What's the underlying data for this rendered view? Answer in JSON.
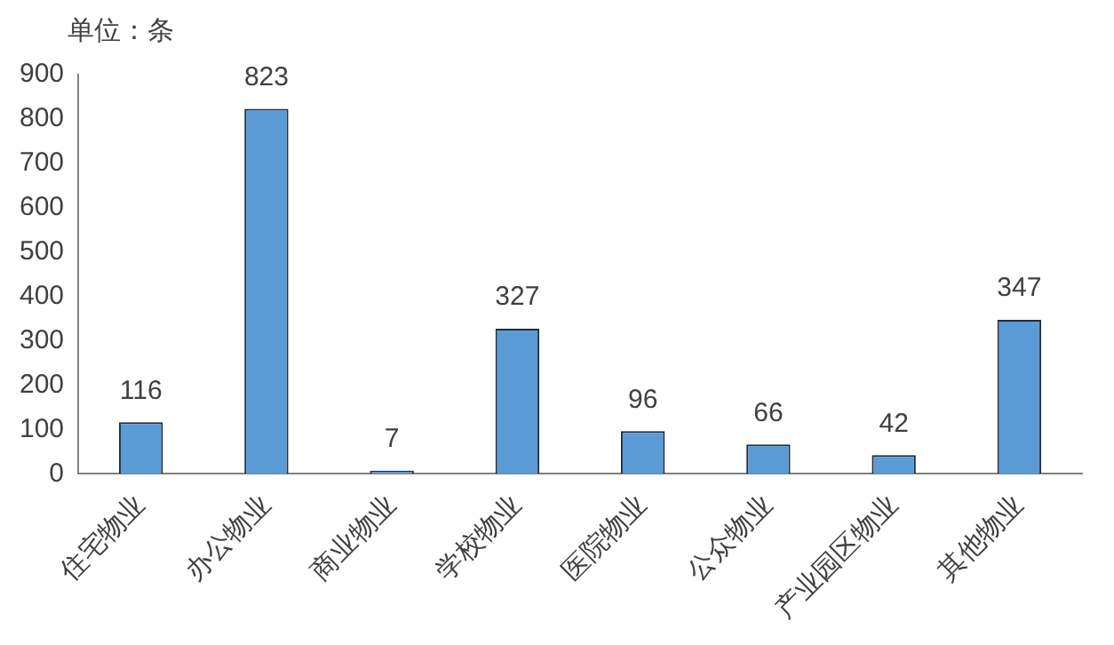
{
  "chart_data": {
    "type": "bar",
    "ylabel": "单位：条",
    "categories": [
      "住宅物业",
      "办公物业",
      "商业物业",
      "学校物业",
      "医院物业",
      "公众物业",
      "产业园区物业",
      "其他物业"
    ],
    "values": [
      116,
      823,
      7,
      327,
      96,
      66,
      42,
      347
    ],
    "color": "#5b9bd5",
    "ylim": [
      0,
      900
    ],
    "yticks": [
      0,
      100,
      200,
      300,
      400,
      500,
      600,
      700,
      800,
      900
    ],
    "grid": false,
    "data_labels": true,
    "legend": false
  }
}
